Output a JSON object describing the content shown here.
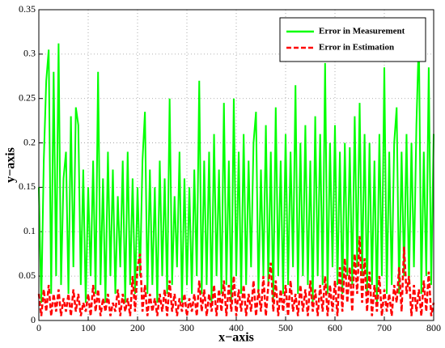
{
  "chart_data": {
    "type": "line",
    "xlabel": "x−axis",
    "ylabel": "y−axis",
    "xlim": [
      0,
      800
    ],
    "ylim": [
      0,
      0.35
    ],
    "xticks": [
      0,
      100,
      200,
      300,
      400,
      500,
      600,
      700,
      800
    ],
    "yticks": [
      0,
      0.05,
      0.1,
      0.15,
      0.2,
      0.25,
      0.3,
      0.35
    ],
    "grid": true,
    "legend": "upper right",
    "x": [
      0,
      5,
      10,
      15,
      20,
      25,
      30,
      35,
      40,
      45,
      50,
      55,
      60,
      65,
      70,
      75,
      80,
      85,
      90,
      95,
      100,
      105,
      110,
      115,
      120,
      125,
      130,
      135,
      140,
      145,
      150,
      155,
      160,
      165,
      170,
      175,
      180,
      185,
      190,
      195,
      200,
      205,
      210,
      215,
      220,
      225,
      230,
      235,
      240,
      245,
      250,
      255,
      260,
      265,
      270,
      275,
      280,
      285,
      290,
      295,
      300,
      305,
      310,
      315,
      320,
      325,
      330,
      335,
      340,
      345,
      350,
      355,
      360,
      365,
      370,
      375,
      380,
      385,
      390,
      395,
      400,
      405,
      410,
      415,
      420,
      425,
      430,
      435,
      440,
      445,
      450,
      455,
      460,
      465,
      470,
      475,
      480,
      485,
      490,
      495,
      500,
      505,
      510,
      515,
      520,
      525,
      530,
      535,
      540,
      545,
      550,
      555,
      560,
      565,
      570,
      575,
      580,
      585,
      590,
      595,
      600,
      605,
      610,
      615,
      620,
      625,
      630,
      635,
      640,
      645,
      650,
      655,
      660,
      665,
      670,
      675,
      680,
      685,
      690,
      695,
      700,
      705,
      710,
      715,
      720,
      725,
      730,
      735,
      740,
      745,
      750,
      755,
      760,
      765,
      770,
      775,
      780,
      785,
      790,
      795,
      800
    ],
    "series": [
      {
        "name": "Error in Measurement",
        "color": "#00ff00",
        "line_style": "solid",
        "values": [
          0.15,
          0.02,
          0.18,
          0.27,
          0.305,
          0.03,
          0.28,
          0.05,
          0.312,
          0.04,
          0.16,
          0.19,
          0.03,
          0.23,
          0.06,
          0.24,
          0.22,
          0.04,
          0.17,
          0.02,
          0.15,
          0.05,
          0.18,
          0.03,
          0.28,
          0.04,
          0.16,
          0.02,
          0.19,
          0.05,
          0.17,
          0.03,
          0.14,
          0.06,
          0.18,
          0.02,
          0.19,
          0.04,
          0.16,
          0.03,
          0.15,
          0.05,
          0.18,
          0.235,
          0.03,
          0.17,
          0.04,
          0.15,
          0.02,
          0.18,
          0.05,
          0.16,
          0.03,
          0.25,
          0.04,
          0.14,
          0.06,
          0.19,
          0.02,
          0.16,
          0.04,
          0.15,
          0.03,
          0.17,
          0.05,
          0.27,
          0.03,
          0.18,
          0.04,
          0.19,
          0.02,
          0.21,
          0.05,
          0.17,
          0.03,
          0.245,
          0.04,
          0.18,
          0.02,
          0.25,
          0.05,
          0.19,
          0.03,
          0.21,
          0.04,
          0.18,
          0.06,
          0.2,
          0.235,
          0.03,
          0.17,
          0.05,
          0.22,
          0.04,
          0.19,
          0.02,
          0.24,
          0.05,
          0.18,
          0.03,
          0.21,
          0.04,
          0.19,
          0.06,
          0.265,
          0.03,
          0.2,
          0.05,
          0.22,
          0.04,
          0.18,
          0.02,
          0.23,
          0.05,
          0.21,
          0.04,
          0.29,
          0.03,
          0.2,
          0.06,
          0.22,
          0.04,
          0.19,
          0.03,
          0.2,
          0.05,
          0.195,
          0.04,
          0.23,
          0.06,
          0.245,
          0.05,
          0.21,
          0.03,
          0.2,
          0.04,
          0.18,
          0.02,
          0.21,
          0.05,
          0.285,
          0.03,
          0.19,
          0.04,
          0.2,
          0.24,
          0.03,
          0.19,
          0.05,
          0.21,
          0.04,
          0.2,
          0.06,
          0.22,
          0.32,
          0.03,
          0.19,
          0.05,
          0.285,
          0.04,
          0.21
        ]
      },
      {
        "name": "Error in Estimation",
        "color": "#ff0000",
        "line_style": "dashed",
        "values": [
          0.03,
          0.005,
          0.035,
          0.01,
          0.04,
          0.005,
          0.03,
          0.01,
          0.035,
          0.005,
          0.025,
          0.01,
          0.03,
          0.005,
          0.035,
          0.01,
          0.03,
          0.005,
          0.02,
          0.01,
          0.03,
          0.005,
          0.04,
          0.01,
          0.035,
          0.005,
          0.025,
          0.01,
          0.03,
          0.005,
          0.02,
          0.01,
          0.035,
          0.005,
          0.03,
          0.01,
          0.025,
          0.005,
          0.05,
          0.01,
          0.06,
          0.075,
          0.01,
          0.04,
          0.005,
          0.03,
          0.01,
          0.025,
          0.005,
          0.03,
          0.01,
          0.035,
          0.005,
          0.045,
          0.01,
          0.03,
          0.005,
          0.025,
          0.01,
          0.03,
          0.005,
          0.025,
          0.01,
          0.03,
          0.005,
          0.045,
          0.01,
          0.035,
          0.005,
          0.03,
          0.01,
          0.04,
          0.005,
          0.035,
          0.01,
          0.045,
          0.005,
          0.04,
          0.01,
          0.05,
          0.005,
          0.035,
          0.01,
          0.04,
          0.005,
          0.03,
          0.01,
          0.045,
          0.005,
          0.035,
          0.01,
          0.05,
          0.005,
          0.04,
          0.065,
          0.01,
          0.045,
          0.005,
          0.035,
          0.01,
          0.04,
          0.005,
          0.045,
          0.01,
          0.03,
          0.005,
          0.04,
          0.01,
          0.035,
          0.005,
          0.045,
          0.01,
          0.035,
          0.005,
          0.04,
          0.01,
          0.05,
          0.005,
          0.04,
          0.01,
          0.045,
          0.005,
          0.06,
          0.01,
          0.07,
          0.02,
          0.06,
          0.01,
          0.075,
          0.03,
          0.095,
          0.02,
          0.07,
          0.01,
          0.055,
          0.005,
          0.04,
          0.01,
          0.05,
          0.005,
          0.035,
          0.01,
          0.03,
          0.005,
          0.04,
          0.02,
          0.06,
          0.01,
          0.083,
          0.03,
          0.05,
          0.005,
          0.04,
          0.01,
          0.035,
          0.005,
          0.045,
          0.01,
          0.055,
          0.005,
          0.02
        ]
      }
    ]
  }
}
